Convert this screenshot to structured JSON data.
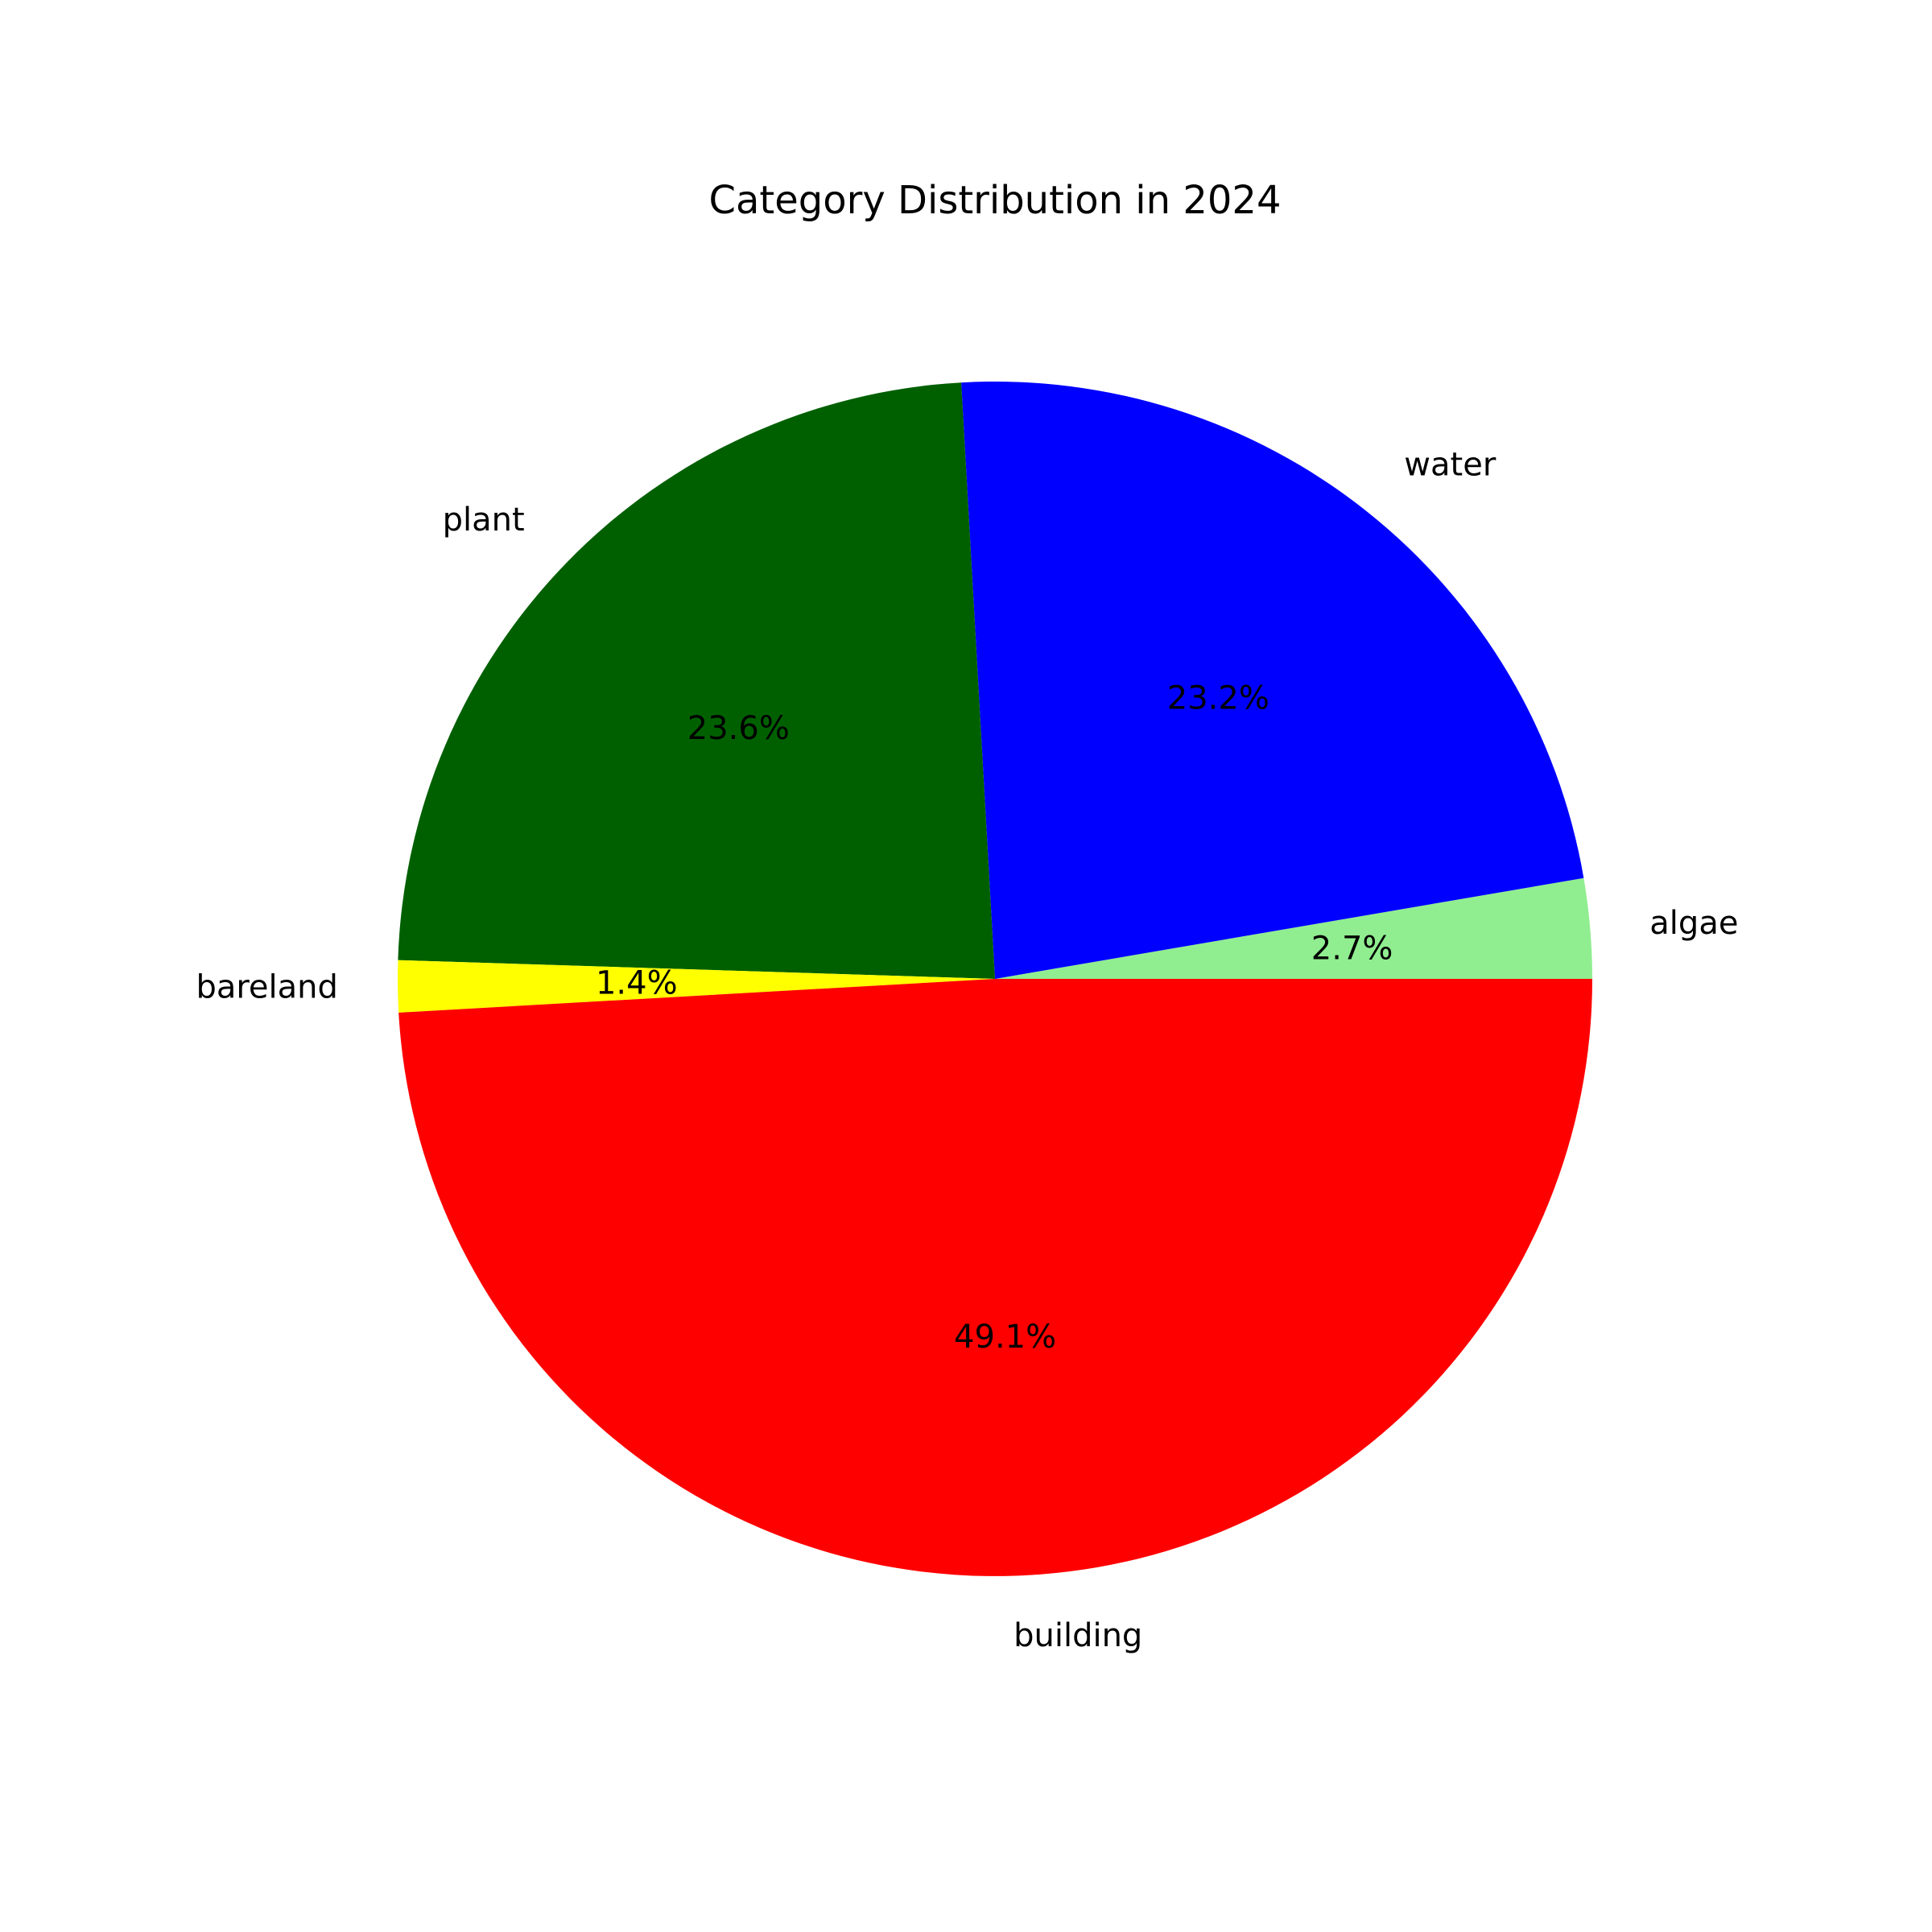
{
  "chart_data": {
    "type": "pie",
    "title": "Category Distribution in 2024",
    "categories": [
      "algae",
      "water",
      "plant",
      "bareland",
      "building"
    ],
    "values": [
      2.7,
      23.2,
      23.6,
      1.4,
      49.1
    ],
    "value_labels": [
      "2.7%",
      "23.2%",
      "23.6%",
      "1.4%",
      "49.1%"
    ],
    "colors": [
      "#90ee90",
      "#0000ff",
      "#006000",
      "#ffff00",
      "#ff0000"
    ],
    "start_angle_deg": 0,
    "direction": "counterclockwise",
    "legend": "none"
  }
}
